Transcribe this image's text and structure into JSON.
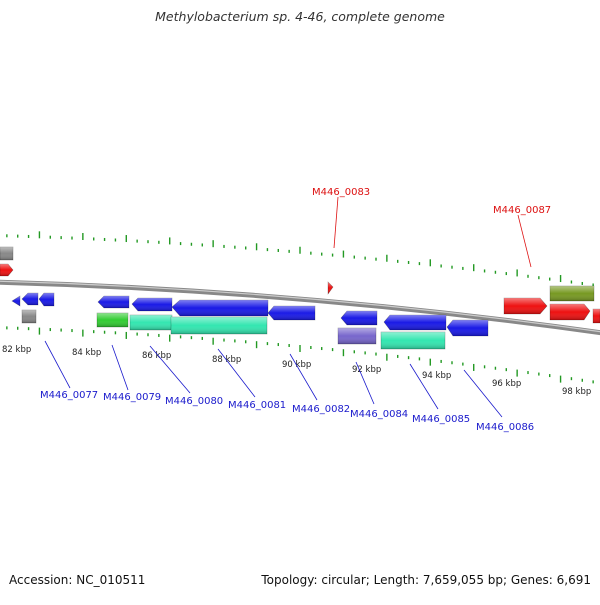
{
  "title": "Methylobacterium sp. 4-46, complete genome",
  "footer": {
    "accession": "Accession: NC_010511",
    "summary": "Topology: circular; Length: 7,659,055 bp; Genes: 6,691"
  },
  "colors": {
    "forward_gene": "#1a1ae6",
    "reverse_gene": "#ee1111",
    "cds_cyan": "#33e6b0",
    "cds_green": "#33cc33",
    "cds_purple": "#7766cc",
    "cds_olive": "#779922",
    "cds_gray": "#888888",
    "backbone": "#888888",
    "tick": "#229922",
    "label_blue": "#1a1acc",
    "label_red": "#dd1111"
  },
  "scale": {
    "unit": "kbp",
    "tick_labels": [
      "82 kbp",
      "84 kbp",
      "86 kbp",
      "88 kbp",
      "90 kbp",
      "92 kbp",
      "94 kbp",
      "96 kbp",
      "98 kbp"
    ]
  },
  "gene_labels": {
    "blue": [
      "M446_0077",
      "M446_0079",
      "M446_0080",
      "M446_0081",
      "M446_0082",
      "M446_0084",
      "M446_0085",
      "M446_0086"
    ],
    "red": [
      "M446_0083",
      "M446_0087"
    ]
  }
}
